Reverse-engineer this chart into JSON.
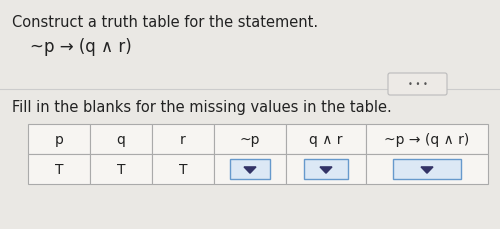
{
  "title_line1": "Construct a truth table for the statement.",
  "formula": "~p → (q ∧ r)",
  "fill_text": "Fill in the blanks for the missing values in the table.",
  "headers": [
    "p",
    "q",
    "r",
    "~p",
    "q ∧ r",
    "~p → (q ∧ r)"
  ],
  "row_values": [
    "T",
    "T",
    "T",
    "",
    "",
    ""
  ],
  "has_dropdown": [
    false,
    false,
    false,
    true,
    true,
    true
  ],
  "bg_color": "#eae8e4",
  "cell_bg": "#f7f5f2",
  "dropdown_bg": "#dce8f5",
  "border_color": "#aaaaaa",
  "dropdown_border": "#6699cc",
  "text_color": "#222222",
  "triangle_color": "#333366",
  "font_size_title": 10.5,
  "font_size_formula": 12,
  "font_size_fill": 10.5,
  "font_size_table": 10,
  "dots_color": "#555555"
}
